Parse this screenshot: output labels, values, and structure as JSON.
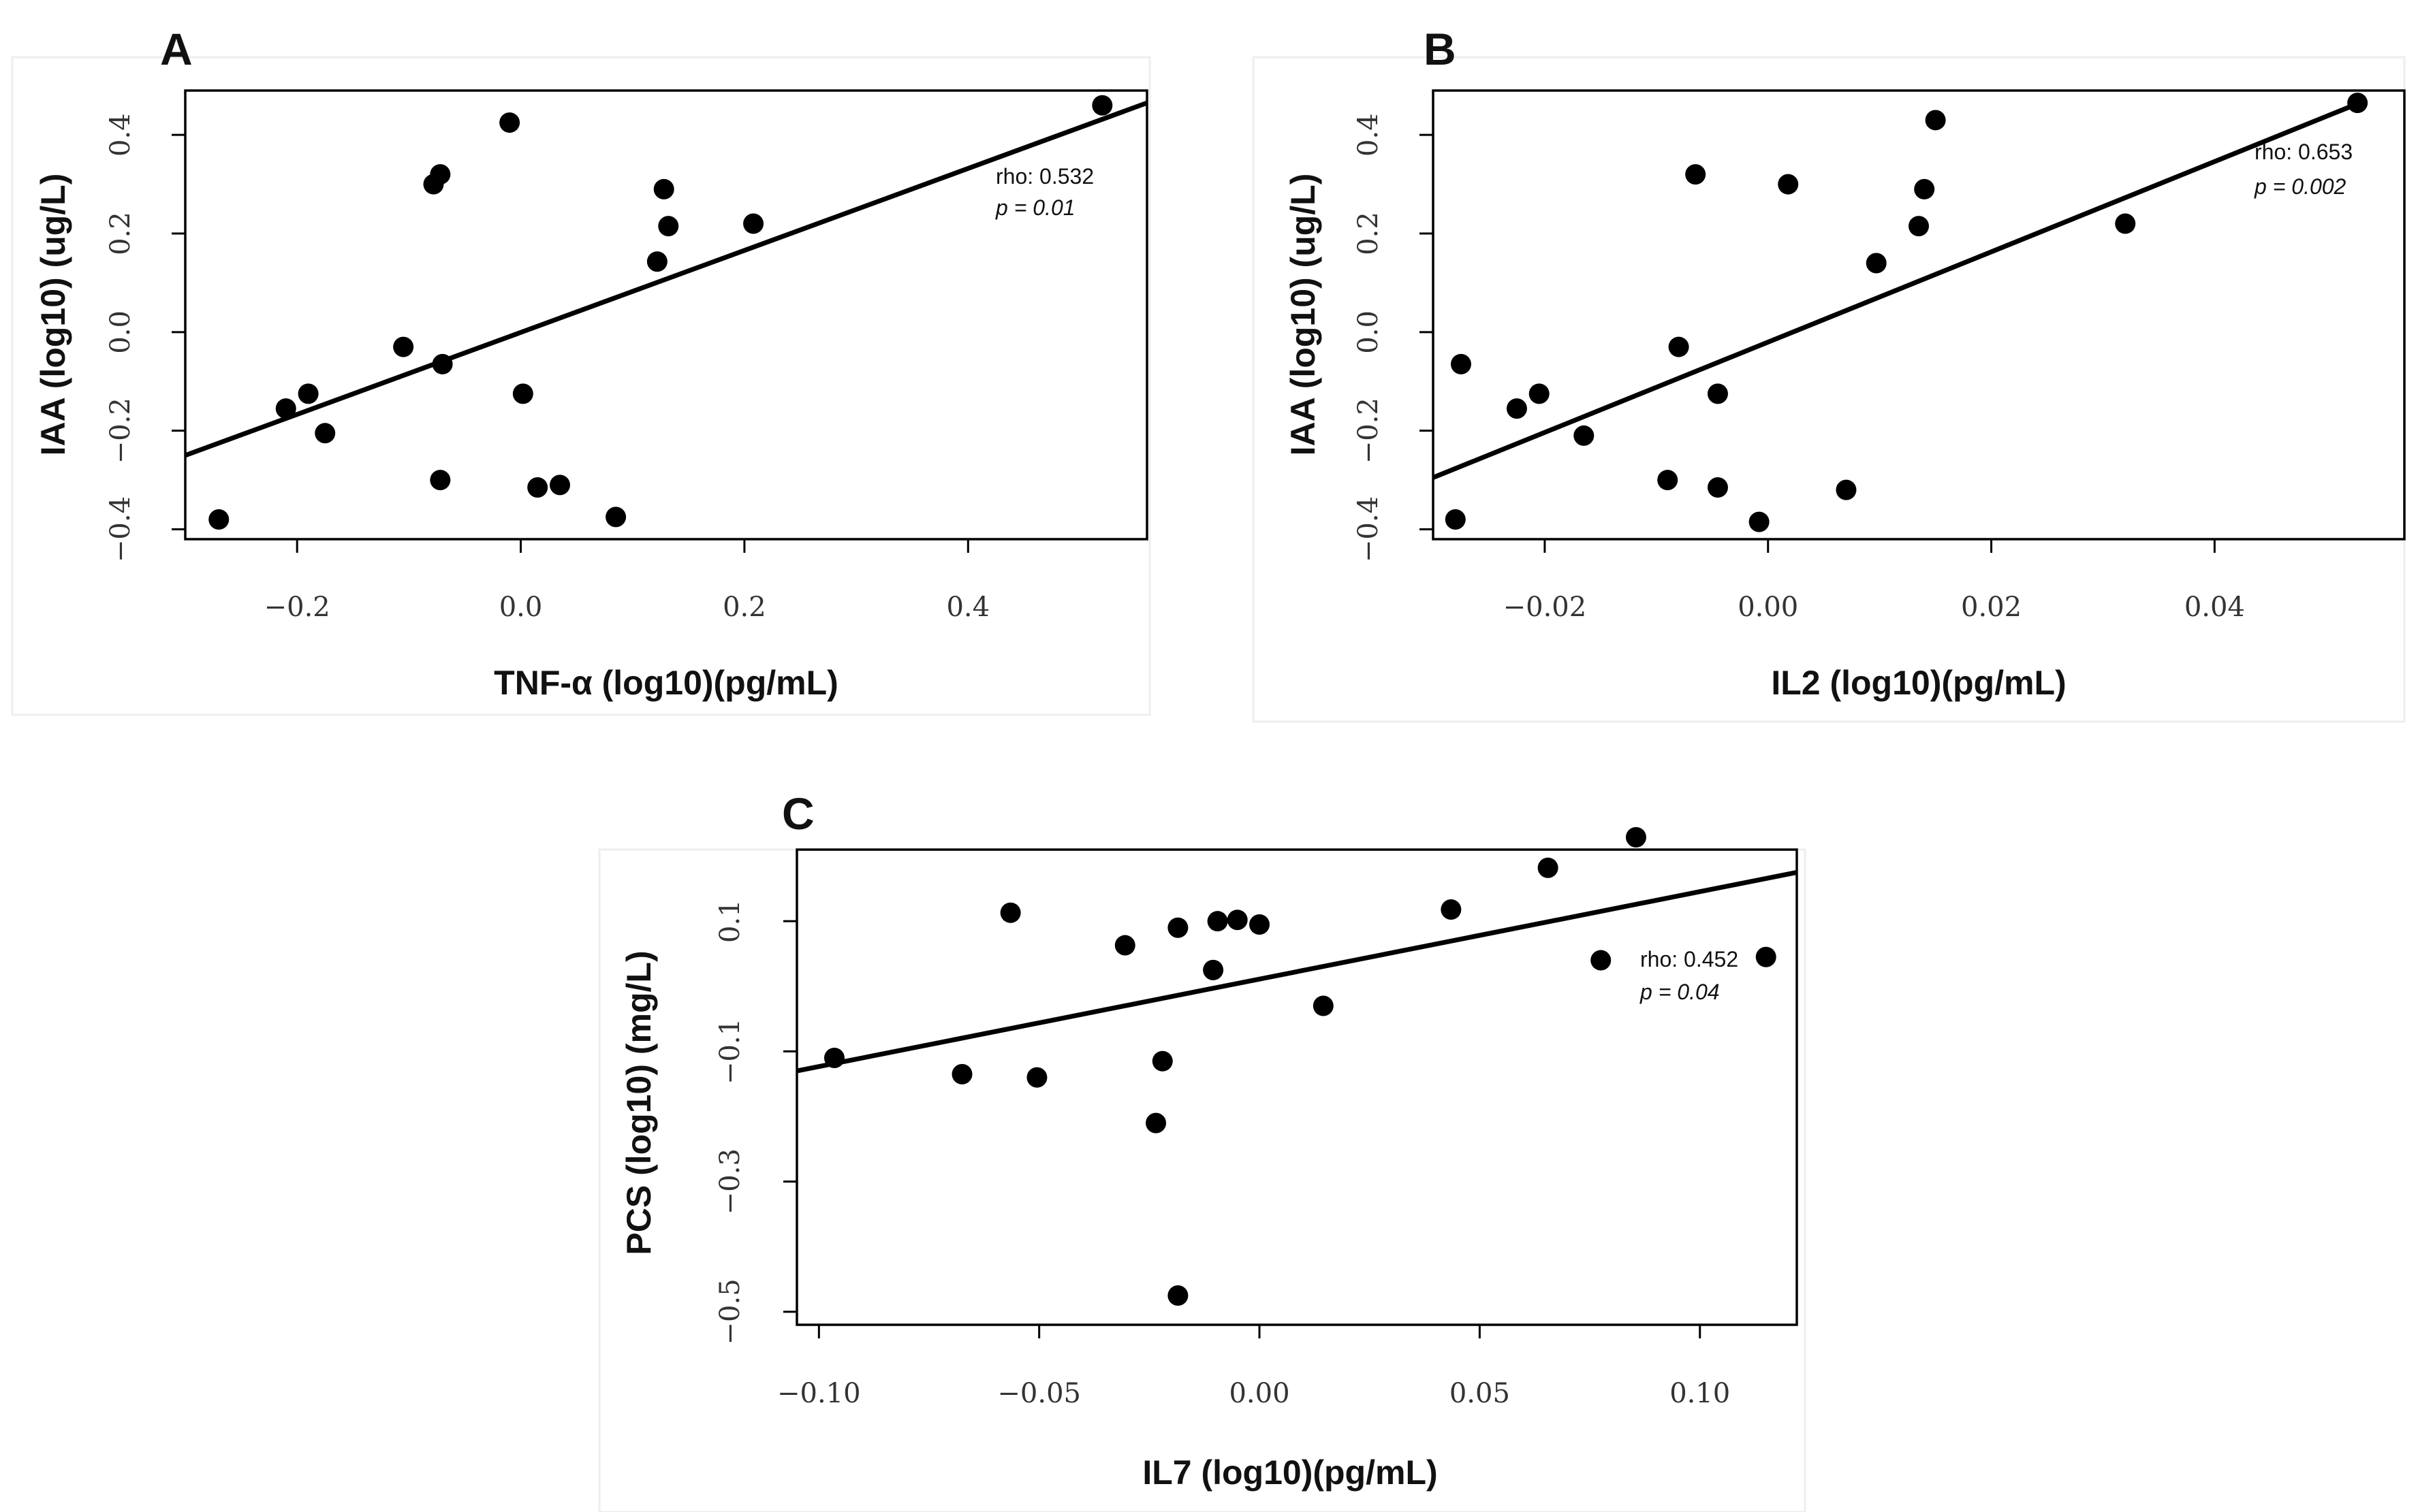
{
  "chart_data": [
    {
      "id": "A",
      "type": "scatter",
      "panel_label": "A",
      "xlabel": "TNF-α  (log10)(pg/mL)",
      "ylabel": "IAA (log10) (ug/L)",
      "xlim": [
        -0.3,
        0.56
      ],
      "ylim": [
        -0.42,
        0.49
      ],
      "xticks": [
        -0.2,
        0.0,
        0.2,
        0.4
      ],
      "xtick_labels": [
        "−0.2",
        "0.0",
        "0.2",
        "0.4"
      ],
      "yticks": [
        -0.4,
        -0.2,
        0.0,
        0.2,
        0.4
      ],
      "ytick_labels": [
        "−0.4",
        "−0.2",
        "0.0",
        "0.2",
        "0.4"
      ],
      "fit_line": {
        "x": [
          -0.3,
          0.56
        ],
        "y": [
          -0.25,
          0.465
        ]
      },
      "rho_text": "rho: 0.532",
      "p_text": "p = 0.01",
      "points": [
        {
          "x": -0.27,
          "y": -0.38
        },
        {
          "x": -0.21,
          "y": -0.155
        },
        {
          "x": -0.19,
          "y": -0.125
        },
        {
          "x": -0.175,
          "y": -0.205
        },
        {
          "x": -0.105,
          "y": -0.03
        },
        {
          "x": -0.078,
          "y": 0.3
        },
        {
          "x": -0.072,
          "y": 0.32
        },
        {
          "x": -0.07,
          "y": -0.065
        },
        {
          "x": -0.072,
          "y": -0.3
        },
        {
          "x": -0.01,
          "y": 0.425
        },
        {
          "x": 0.002,
          "y": -0.125
        },
        {
          "x": 0.015,
          "y": -0.315
        },
        {
          "x": 0.035,
          "y": -0.31
        },
        {
          "x": 0.085,
          "y": -0.375
        },
        {
          "x": 0.122,
          "y": 0.143
        },
        {
          "x": 0.128,
          "y": 0.29
        },
        {
          "x": 0.132,
          "y": 0.215
        },
        {
          "x": 0.208,
          "y": 0.22
        },
        {
          "x": 0.52,
          "y": 0.46
        }
      ]
    },
    {
      "id": "B",
      "type": "scatter",
      "panel_label": "B",
      "xlabel": "IL2 (log10)(pg/mL)",
      "ylabel": "IAA (log10) (ug/L)",
      "xlim": [
        -0.03,
        0.057
      ],
      "ylim": [
        -0.42,
        0.49
      ],
      "xticks": [
        -0.02,
        0.0,
        0.02,
        0.04
      ],
      "xtick_labels": [
        "−0.02",
        "0.00",
        "0.02",
        "0.04"
      ],
      "yticks": [
        -0.4,
        -0.2,
        0.0,
        0.2,
        0.4
      ],
      "ytick_labels": [
        "−0.4",
        "−0.2",
        "0.0",
        "0.2",
        "0.4"
      ],
      "fit_line": {
        "x": [
          -0.03,
          0.053
        ],
        "y": [
          -0.295,
          0.465
        ]
      },
      "rho_text": "rho: 0.653",
      "p_text": "p = 0.002",
      "points": [
        {
          "x": -0.0275,
          "y": -0.065
        },
        {
          "x": -0.028,
          "y": -0.38
        },
        {
          "x": -0.0225,
          "y": -0.155
        },
        {
          "x": -0.0205,
          "y": -0.125
        },
        {
          "x": -0.0165,
          "y": -0.21
        },
        {
          "x": -0.009,
          "y": -0.3
        },
        {
          "x": -0.008,
          "y": -0.03
        },
        {
          "x": -0.0065,
          "y": 0.32
        },
        {
          "x": -0.0045,
          "y": -0.125
        },
        {
          "x": -0.0045,
          "y": -0.315
        },
        {
          "x": -0.0008,
          "y": -0.385
        },
        {
          "x": 0.0018,
          "y": 0.3
        },
        {
          "x": 0.007,
          "y": -0.32
        },
        {
          "x": 0.0097,
          "y": 0.14
        },
        {
          "x": 0.0135,
          "y": 0.215
        },
        {
          "x": 0.014,
          "y": 0.29
        },
        {
          "x": 0.015,
          "y": 0.43
        },
        {
          "x": 0.032,
          "y": 0.22
        },
        {
          "x": 0.0528,
          "y": 0.465
        }
      ]
    },
    {
      "id": "C",
      "type": "scatter",
      "panel_label": "C",
      "xlabel": "IL7 (log10)(pg/mL)",
      "ylabel": "PCS (log10) (mg/L)",
      "xlim": [
        -0.105,
        0.122
      ],
      "ylim": [
        -0.52,
        0.21
      ],
      "xticks": [
        -0.1,
        -0.05,
        0.0,
        0.05,
        0.1
      ],
      "xtick_labels": [
        "−0.10",
        "−0.05",
        "0.00",
        "0.05",
        "0.10"
      ],
      "yticks": [
        -0.5,
        -0.3,
        -0.1,
        0.1
      ],
      "ytick_labels": [
        "−0.5",
        "−0.3",
        "−0.1",
        "0.1"
      ],
      "fit_line": {
        "x": [
          -0.105,
          0.122
        ],
        "y": [
          -0.13,
          0.175
        ]
      },
      "rho_text": "rho: 0.452",
      "p_text": "p = 0.04",
      "points": [
        {
          "x": -0.0965,
          "y": -0.11
        },
        {
          "x": -0.0675,
          "y": -0.135
        },
        {
          "x": -0.0565,
          "y": 0.113
        },
        {
          "x": -0.0505,
          "y": -0.14
        },
        {
          "x": -0.0305,
          "y": 0.063
        },
        {
          "x": -0.0235,
          "y": -0.21
        },
        {
          "x": -0.022,
          "y": -0.115
        },
        {
          "x": -0.0185,
          "y": -0.475
        },
        {
          "x": -0.0185,
          "y": 0.09
        },
        {
          "x": -0.0105,
          "y": 0.025
        },
        {
          "x": -0.0095,
          "y": 0.1
        },
        {
          "x": -0.005,
          "y": 0.102
        },
        {
          "x": 0.0,
          "y": 0.095
        },
        {
          "x": 0.0145,
          "y": -0.03
        },
        {
          "x": 0.0435,
          "y": 0.118
        },
        {
          "x": 0.0655,
          "y": 0.182
        },
        {
          "x": 0.0775,
          "y": 0.04
        },
        {
          "x": 0.0855,
          "y": 0.229
        },
        {
          "x": 0.115,
          "y": 0.045
        }
      ]
    }
  ]
}
